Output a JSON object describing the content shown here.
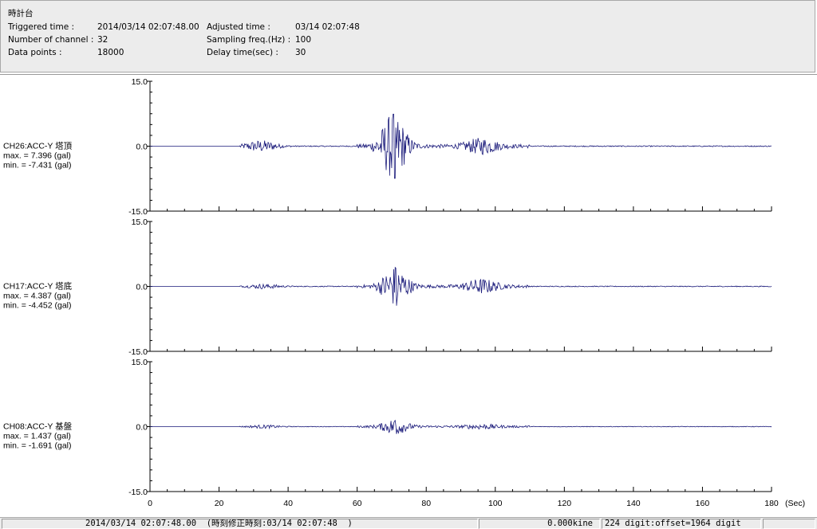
{
  "header": {
    "title": "時計台",
    "triggered_label": "Triggered time :",
    "triggered_value": "2014/03/14 02:07:48.00",
    "channels_label": "Number of channel :",
    "channels_value": "32",
    "points_label": "Data points :",
    "points_value": "18000",
    "adjusted_label": "Adjusted time :",
    "adjusted_value": "03/14 02:07:48",
    "sampling_label": "Sampling freq.(Hz) :",
    "sampling_value": "100",
    "delay_label": "Delay time(sec) :",
    "delay_value": "30"
  },
  "chart_data": {
    "type": "line",
    "x_axis": {
      "min": 0,
      "max": 180,
      "ticks": [
        "0",
        "20",
        "40",
        "60",
        "80",
        "100",
        "120",
        "140",
        "160",
        "180"
      ],
      "unit": "(Sec)"
    },
    "y_ticks": [
      "15.0",
      "0.0",
      "-15.0"
    ],
    "ylim": [
      -15,
      15
    ],
    "line_color": "#1a1a7a",
    "series": [
      {
        "name": "CH26:ACC-Y 塔頂",
        "max_label": "max. = 7.396 (gal)",
        "min_label": "min. = -7.431 (gal)",
        "max": 7.396,
        "min": -7.431,
        "noise": 0.12,
        "bursts": [
          [
            32,
            1.3
          ],
          [
            70.5,
            7.4
          ],
          [
            96,
            1.6
          ]
        ]
      },
      {
        "name": "CH17:ACC-Y 塔底",
        "max_label": "max. = 4.387 (gal)",
        "min_label": "min. = -4.452 (gal)",
        "max": 4.387,
        "min": -4.452,
        "noise": 0.1,
        "bursts": [
          [
            33,
            0.5
          ],
          [
            71,
            4.4
          ],
          [
            96,
            1.5
          ]
        ]
      },
      {
        "name": "CH08:ACC-Y 基盤",
        "max_label": "max. = 1.437 (gal)",
        "min_label": "min. = -1.691 (gal)",
        "max": 1.437,
        "min": -1.691,
        "noise": 0.07,
        "bursts": [
          [
            33,
            0.35
          ],
          [
            71,
            1.6
          ],
          [
            96,
            0.45
          ]
        ]
      }
    ]
  },
  "status": {
    "time": "2014/03/14 02:07:48.00  (時刻修正時刻:03/14 02:07:48  )",
    "kine": "0.000kine",
    "digit": "224 digit:offset=1964 digit"
  }
}
